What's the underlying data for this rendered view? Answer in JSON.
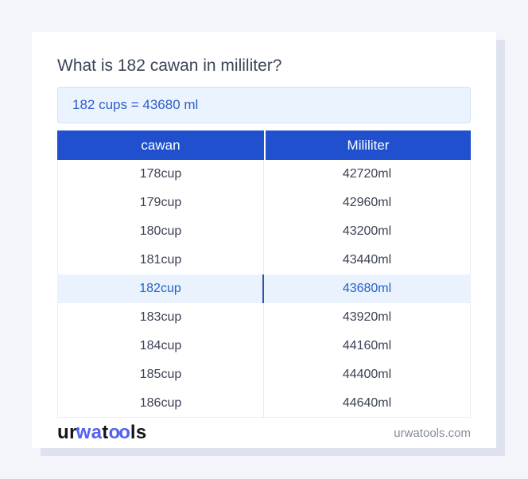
{
  "page": {
    "background_color": "#f3f5fa"
  },
  "header": {
    "title": "What is 182 cawan in mililiter?"
  },
  "result_box": {
    "text": "182 cups = 43680 ml",
    "background_color": "#eaf3fe",
    "text_color": "#2e5ec9"
  },
  "table": {
    "columns": [
      "cawan",
      "Mililiter"
    ],
    "header_bg_color": "#2050cd",
    "header_text_color": "#ffffff",
    "highlight_index": 4,
    "highlight_bg_color": "#e9f2fd",
    "highlight_text_color": "#2463c9",
    "rows": [
      [
        "178cup",
        "42720ml"
      ],
      [
        "179cup",
        "42960ml"
      ],
      [
        "180cup",
        "43200ml"
      ],
      [
        "181cup",
        "43440ml"
      ],
      [
        "182cup",
        "43680ml"
      ],
      [
        "183cup",
        "43920ml"
      ],
      [
        "184cup",
        "44160ml"
      ],
      [
        "185cup",
        "44400ml"
      ],
      [
        "186cup",
        "44640ml"
      ]
    ]
  },
  "footer": {
    "logo": {
      "p1": "ur",
      "p2": "wa",
      "p3": "t",
      "p4": "oo",
      "p5": "ls",
      "blue_color": "#5562f0",
      "dark_color": "#16161a"
    },
    "site": "urwatools.com"
  }
}
